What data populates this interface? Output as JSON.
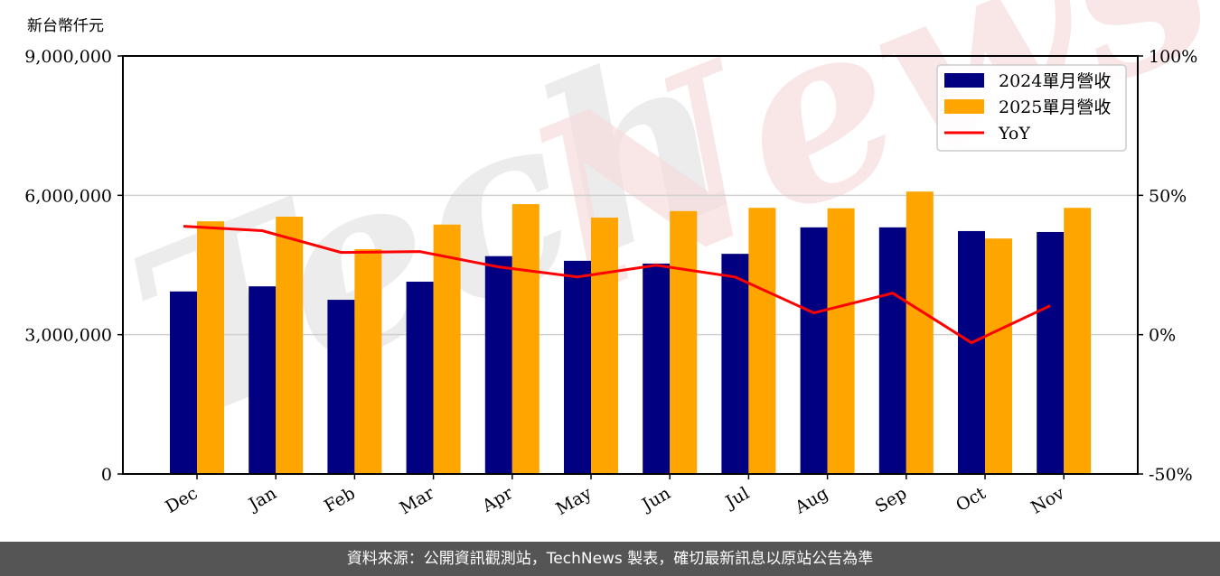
{
  "chart_data": {
    "type": "bar",
    "title": "",
    "ylabel": "新台幣仟元",
    "xlabel": "",
    "categories": [
      "Dec",
      "Jan",
      "Feb",
      "Mar",
      "Apr",
      "May",
      "Jun",
      "Jul",
      "Aug",
      "Sep",
      "Oct",
      "Nov"
    ],
    "series": [
      {
        "name": "2024單月營收",
        "type": "bar",
        "axis": "left",
        "color": "#000080",
        "values": [
          3930000,
          4040000,
          3750000,
          4140000,
          4690000,
          4590000,
          4530000,
          4740000,
          5310000,
          5310000,
          5230000,
          5210000
        ]
      },
      {
        "name": "2025單月營收",
        "type": "bar",
        "axis": "left",
        "color": "#FFA500",
        "values": [
          5440000,
          5540000,
          4840000,
          5370000,
          5810000,
          5520000,
          5660000,
          5730000,
          5720000,
          6080000,
          5070000,
          5730000
        ]
      },
      {
        "name": "YoY",
        "type": "line",
        "axis": "right",
        "color": "#FF0000",
        "values": [
          38.9,
          37.3,
          29.5,
          29.8,
          24.3,
          20.7,
          24.9,
          20.7,
          7.8,
          14.9,
          -2.9,
          10.4
        ]
      }
    ],
    "ylim": [
      0,
      9000000
    ],
    "y_ticks": [
      0,
      3000000,
      6000000,
      9000000
    ],
    "y_tick_labels": [
      "0",
      "3,000,000",
      "6,000,000",
      "9,000,000"
    ],
    "y2lim": [
      -50,
      100
    ],
    "y2_ticks": [
      -50,
      0,
      50,
      100
    ],
    "y2_tick_labels": [
      "-50%",
      "0%",
      "50%",
      "100%"
    ],
    "grid": true,
    "legend_position": "upper right",
    "watermark": "TechNews"
  },
  "header": {
    "unit_label": "新台幣仟元"
  },
  "legend": {
    "items": [
      {
        "label": "2024單月營收",
        "color": "#000080"
      },
      {
        "label": "2025單月營收",
        "color": "#FFA500"
      },
      {
        "label": "YoY",
        "color": "#FF0000"
      }
    ]
  },
  "footer": {
    "source_text": "資料來源：公開資訊觀測站，TechNews 製表，確切最新訊息以原站公告為準"
  }
}
